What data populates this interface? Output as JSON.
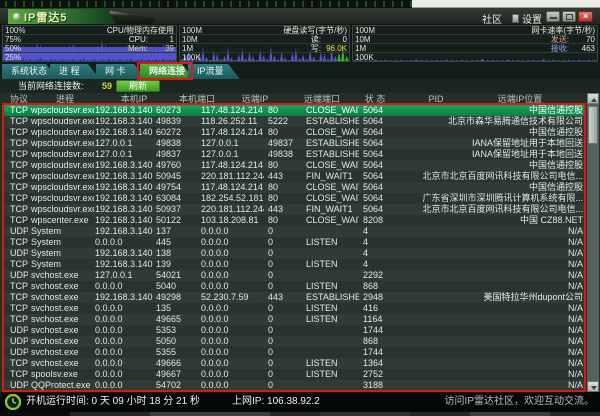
{
  "window": {
    "title": "IP雷达5"
  },
  "titlebar": {
    "community": "社区",
    "settings": "设置",
    "minimize_icon": "minimize",
    "maximize_icon": "maximize",
    "close_glyph": "×"
  },
  "monitors": {
    "cpu": {
      "scale": [
        "100%",
        "75%",
        "50%",
        "25%"
      ],
      "title": "CPU/物理内存使用",
      "cpu_label": "CPU:",
      "cpu_value": "1",
      "mem_label": "Mem:",
      "mem_value": "39",
      "mem_band": 39,
      "history": [
        38,
        40,
        37,
        39,
        42,
        45,
        39,
        38,
        41,
        55,
        48,
        40,
        38,
        39,
        43,
        41,
        38,
        40,
        46,
        52,
        42,
        39,
        38,
        40,
        41,
        39,
        44,
        58,
        49,
        41,
        39,
        40,
        38,
        42,
        45,
        40,
        39,
        41,
        47,
        43,
        40,
        38,
        39,
        42,
        50,
        44,
        40,
        39
      ],
      "cpu_ticks": [
        6,
        4,
        8,
        3,
        5,
        10,
        4,
        6,
        3,
        7,
        12,
        5,
        4,
        8,
        6,
        3,
        9,
        5,
        4,
        7,
        3,
        6,
        11,
        4,
        5,
        8,
        3,
        6,
        4,
        9,
        5,
        3,
        7,
        4,
        6,
        10,
        3,
        5,
        8,
        4,
        6,
        3,
        7,
        5,
        9,
        4,
        6,
        5
      ]
    },
    "disk": {
      "scale": [
        "100M",
        "10M",
        "1M",
        "100K"
      ],
      "title": "硬盘读写(字节/秒)",
      "read_label": "读:",
      "read_value": "0",
      "write_label": "写:",
      "write_value": "96.0K",
      "spikes": [
        5,
        18,
        32,
        8,
        2,
        25,
        40,
        12,
        4,
        30,
        22,
        6,
        15,
        38,
        10,
        3,
        20,
        35,
        8,
        26,
        14,
        4,
        31,
        18,
        7,
        42,
        16,
        5,
        28,
        11,
        3,
        24,
        37,
        9,
        19,
        6,
        33,
        13,
        4,
        27,
        21,
        8,
        36,
        15
      ],
      "recent_green": [
        24,
        38,
        14
      ]
    },
    "net": {
      "scale": [
        "100M",
        "10M",
        "1M",
        "100K"
      ],
      "title": "网卡速率(字节/秒)",
      "send_label": "发送:",
      "send_value": "70",
      "recv_label": "接收:",
      "recv_value": "463",
      "spikes": [
        2,
        3,
        2,
        2,
        4,
        2,
        3,
        2,
        2,
        3,
        2,
        2,
        5,
        3,
        2,
        2,
        3,
        2,
        4,
        2,
        2,
        3,
        2,
        2,
        3,
        6,
        2,
        3,
        2,
        2,
        4,
        2,
        3,
        2,
        2,
        3,
        2,
        5,
        2,
        3,
        2,
        2,
        3,
        2,
        4,
        2,
        3,
        2
      ]
    }
  },
  "tabs": [
    {
      "label": "系统状态"
    },
    {
      "label": "进 程"
    },
    {
      "label": "网 卡"
    },
    {
      "label": "网络连接"
    },
    {
      "label": "IP流量"
    }
  ],
  "active_tab_index": 3,
  "toolbar": {
    "connections_label": "当前网络连接数:",
    "connections_count": "59",
    "refresh_label": "刷新"
  },
  "table": {
    "headers": [
      "协议",
      "进程",
      "本机IP",
      "本机端口",
      "远端IP",
      "远端端口",
      "状 态",
      "PID",
      "远端IP位置"
    ],
    "selected_index": 0,
    "rows": [
      [
        "TCP",
        "wpscloudsvr.exe",
        "192.168.3.140",
        "60273",
        "117.48.124.214",
        "80",
        "CLOSE_WAIT",
        "5064",
        "中国信通控股"
      ],
      [
        "TCP",
        "wpscloudsvr.exe",
        "192.168.3.140",
        "49839",
        "118.26.252.11",
        "5222",
        "ESTABLISHED",
        "5064",
        "北京市森华易腾通信技术有限公司"
      ],
      [
        "TCP",
        "wpscloudsvr.exe",
        "192.168.3.140",
        "60272",
        "117.48.124.214",
        "80",
        "CLOSE_WAIT",
        "5064",
        "中国信通控股"
      ],
      [
        "TCP",
        "wpscloudsvr.exe",
        "127.0.0.1",
        "49838",
        "127.0.0.1",
        "49837",
        "ESTABLISHED",
        "5064",
        "IANA保留地址用于本地回送"
      ],
      [
        "TCP",
        "wpscloudsvr.exe",
        "127.0.0.1",
        "49837",
        "127.0.0.1",
        "49838",
        "ESTABLISHED",
        "5064",
        "IANA保留地址用于本地回送"
      ],
      [
        "TCP",
        "wpscloudsvr.exe",
        "192.168.3.140",
        "49760",
        "117.48.124.214",
        "80",
        "CLOSE_WAIT",
        "5064",
        "中国信通控股"
      ],
      [
        "TCP",
        "wpscloudsvr.exe",
        "192.168.3.140",
        "50945",
        "220.181.112.244",
        "443",
        "FIN_WAIT1",
        "5064",
        "北京市北京百度网讯科技有限公司电信..."
      ],
      [
        "TCP",
        "wpscloudsvr.exe",
        "192.168.3.140",
        "49754",
        "117.48.124.214",
        "80",
        "CLOSE_WAIT",
        "5064",
        "中国信通控股"
      ],
      [
        "TCP",
        "wpscloudsvr.exe",
        "192.168.3.140",
        "63084",
        "182.254.52.181",
        "80",
        "CLOSE_WAIT",
        "5064",
        "广东省深圳市深圳腾讯计算机系统有限..."
      ],
      [
        "TCP",
        "wpscloudsvr.exe",
        "192.168.3.140",
        "50937",
        "220.181.112.244",
        "443",
        "FIN_WAIT1",
        "5064",
        "北京市北京百度网讯科技有限公司电信..."
      ],
      [
        "TCP",
        "wpscenter.exe",
        "192.168.3.140",
        "50122",
        "103.18.208.81",
        "80",
        "CLOSE_WAIT",
        "8208",
        "中国 CZ88.NET"
      ],
      [
        "UDP",
        "System",
        "192.168.3.140",
        "137",
        "0.0.0.0",
        "0",
        "",
        "4",
        "N/A"
      ],
      [
        "TCP",
        "System",
        "0.0.0.0",
        "445",
        "0.0.0.0",
        "0",
        "LISTEN",
        "4",
        "N/A"
      ],
      [
        "UDP",
        "System",
        "192.168.3.140",
        "138",
        "0.0.0.0",
        "0",
        "",
        "4",
        "N/A"
      ],
      [
        "TCP",
        "System",
        "192.168.3.140",
        "139",
        "0.0.0.0",
        "0",
        "LISTEN",
        "4",
        "N/A"
      ],
      [
        "UDP",
        "svchost.exe",
        "127.0.0.1",
        "54021",
        "0.0.0.0",
        "0",
        "",
        "2292",
        "N/A"
      ],
      [
        "TCP",
        "svchost.exe",
        "0.0.0.0",
        "5040",
        "0.0.0.0",
        "0",
        "LISTEN",
        "868",
        "N/A"
      ],
      [
        "TCP",
        "svchost.exe",
        "192.168.3.140",
        "49298",
        "52.230.7.59",
        "443",
        "ESTABLISHED",
        "2948",
        "美国特拉华州dupont公司"
      ],
      [
        "TCP",
        "svchost.exe",
        "0.0.0.0",
        "135",
        "0.0.0.0",
        "0",
        "LISTEN",
        "416",
        "N/A"
      ],
      [
        "TCP",
        "svchost.exe",
        "0.0.0.0",
        "49665",
        "0.0.0.0",
        "0",
        "LISTEN",
        "1164",
        "N/A"
      ],
      [
        "UDP",
        "svchost.exe",
        "0.0.0.0",
        "5353",
        "0.0.0.0",
        "0",
        "",
        "1744",
        "N/A"
      ],
      [
        "UDP",
        "svchost.exe",
        "0.0.0.0",
        "5050",
        "0.0.0.0",
        "0",
        "",
        "868",
        "N/A"
      ],
      [
        "UDP",
        "svchost.exe",
        "0.0.0.0",
        "5355",
        "0.0.0.0",
        "0",
        "",
        "1744",
        "N/A"
      ],
      [
        "TCP",
        "svchost.exe",
        "0.0.0.0",
        "49666",
        "0.0.0.0",
        "0",
        "LISTEN",
        "1364",
        "N/A"
      ],
      [
        "TCP",
        "spoolsv.exe",
        "0.0.0.0",
        "49667",
        "0.0.0.0",
        "0",
        "LISTEN",
        "2752",
        "N/A"
      ],
      [
        "UDP",
        "QQProtect.exe",
        "0.0.0.0",
        "54702",
        "0.0.0.0",
        "0",
        "",
        "3188",
        "N/A"
      ]
    ]
  },
  "statusbar": {
    "uptime": "开机运行时间:  0 天 09 小时 18 分 21 秒",
    "ip": "上网IP:  106.38.92.2",
    "community_note": "访问IP雷达社区，欢迎互动交流。"
  },
  "colors": {
    "annotation_red": "#e11515",
    "selected_row_green": "#108c4e",
    "tab_active_green": "#3fa234",
    "chart_blue": "#5a5ad8",
    "chart_blue_light": "#7d7de4",
    "chart_blue_dark": "#2c2cb0",
    "chart_band_purple": "#5353cf",
    "disk_write_green": "#2fc02f",
    "value_yellow": "#e8e43a"
  }
}
